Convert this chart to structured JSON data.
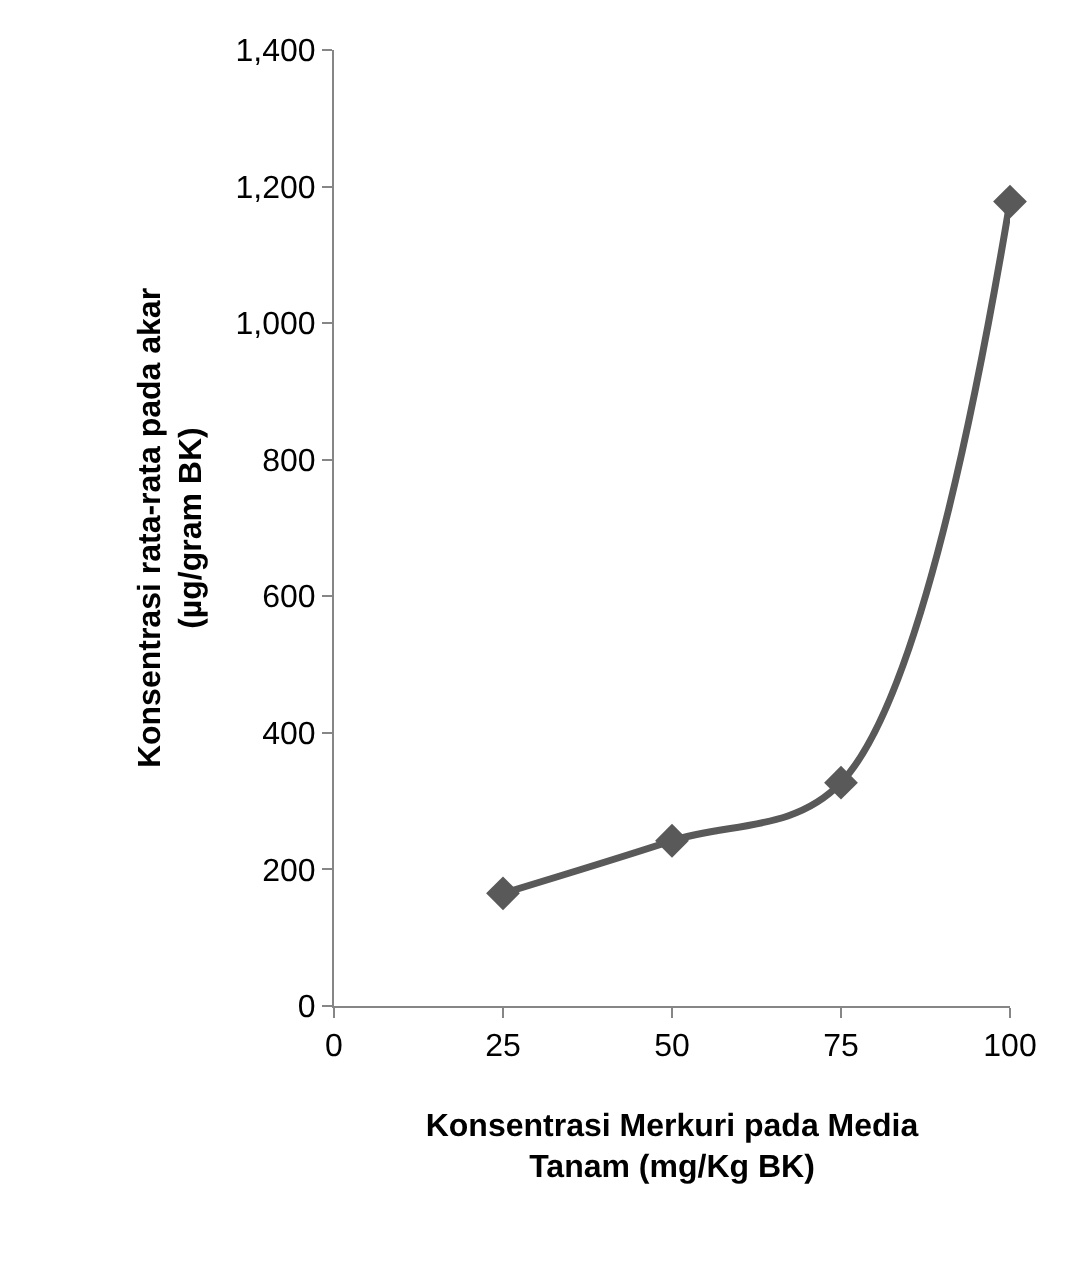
{
  "chart_data": {
    "type": "line",
    "xlabel": "Konsentrasi Merkuri pada Media\nTanam (mg/Kg BK)",
    "ylabel": "Konsentrasi rata-rata pada akar\n(µg/gram BK)",
    "x": [
      25,
      50,
      75,
      100
    ],
    "series": [
      {
        "color": "#595959",
        "values": [
          165,
          242,
          327,
          1178
        ]
      }
    ],
    "xlim": [
      0,
      100
    ],
    "xticks": [
      0,
      25,
      50,
      75,
      100
    ],
    "ylim": [
      0,
      1400
    ],
    "yticks": [
      0,
      {
        "value": 200,
        "label": "200"
      },
      {
        "value": 400,
        "label": "400"
      },
      {
        "value": 600,
        "label": "600"
      },
      {
        "value": 800,
        "label": "800"
      },
      {
        "value": 1000,
        "label": "1,000"
      },
      {
        "value": 1200,
        "label": "1,200"
      },
      {
        "value": 1400,
        "label": "1,400"
      }
    ],
    "marker": "diamond",
    "line_style": "solid"
  }
}
